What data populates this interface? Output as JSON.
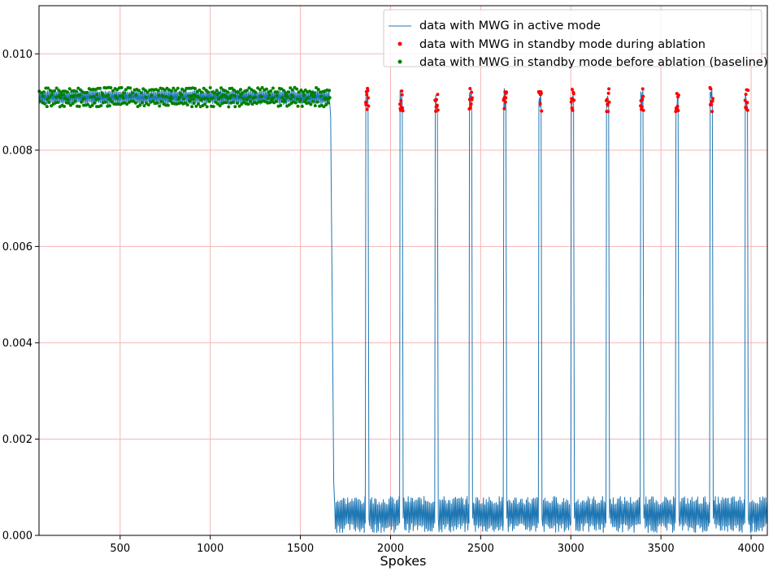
{
  "chart_data": {
    "type": "line",
    "title": "",
    "xlabel": "Spokes",
    "ylabel": "",
    "xlim": [
      50,
      4090
    ],
    "ylim": [
      0,
      0.011
    ],
    "grid": true,
    "grid_color": "#f5b5b5",
    "legend_position": "upper-right",
    "x_ticks": [
      500,
      1000,
      1500,
      2000,
      2500,
      3000,
      3500,
      4000
    ],
    "x_tick_labels": [
      "500",
      "1000",
      "1500",
      "2000",
      "2500",
      "3000",
      "3500",
      "4000"
    ],
    "y_ticks": [
      0,
      0.002,
      0.004,
      0.006,
      0.008,
      0.01
    ],
    "y_tick_labels": [
      "0.000",
      "0.002",
      "0.004",
      "0.006",
      "0.008",
      "0.010"
    ],
    "series": [
      {
        "name": "data with MWG in active mode",
        "style": "line",
        "color": "#1f77b4",
        "baseline_high_range": [
          0.0089,
          0.0093
        ],
        "baseline_x_range": [
          50,
          1660
        ],
        "drop_x": [
          1660,
          1690
        ],
        "ablation_low_range": [
          5e-05,
          0.00082
        ],
        "spike_centers": [
          1870,
          2060,
          2255,
          2445,
          2635,
          2830,
          3010,
          3205,
          3395,
          3590,
          3780,
          3975
        ],
        "spike_width": 20,
        "spike_level_range": [
          0.0088,
          0.0093
        ]
      },
      {
        "name": "data with MWG in standby mode during ablation",
        "style": "markers",
        "color": "#ff0000",
        "x_centers": [
          1870,
          2060,
          2255,
          2445,
          2635,
          2830,
          3010,
          3205,
          3395,
          3590,
          3780,
          3975
        ],
        "y_range": [
          0.0088,
          0.0093
        ]
      },
      {
        "name": "data with MWG in standby mode before ablation (baseline)",
        "style": "markers",
        "color": "#008000",
        "x_range": [
          50,
          1660
        ],
        "y_range": [
          0.0089,
          0.0093
        ]
      }
    ]
  }
}
